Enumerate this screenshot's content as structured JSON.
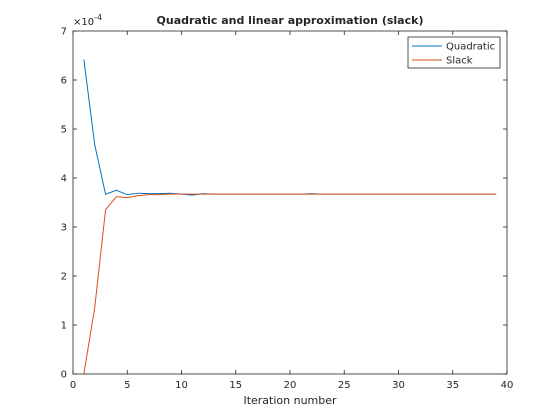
{
  "chart_data": {
    "type": "line",
    "title": "Quadratic and linear approximation (slack)",
    "xlabel": "Iteration number",
    "ylabel": "",
    "y_exponent_label": "×10",
    "y_exponent": "-4",
    "xlim": [
      0,
      40
    ],
    "ylim": [
      0,
      7
    ],
    "x_ticks": [
      0,
      5,
      10,
      15,
      20,
      25,
      30,
      35,
      40
    ],
    "y_ticks": [
      0,
      1,
      2,
      3,
      4,
      5,
      6,
      7
    ],
    "grid": false,
    "legend_position": "top-right",
    "x": [
      1,
      2,
      3,
      4,
      5,
      6,
      7,
      8,
      9,
      10,
      11,
      12,
      13,
      14,
      15,
      16,
      17,
      18,
      19,
      20,
      21,
      22,
      23,
      24,
      25,
      26,
      27,
      28,
      29,
      30,
      31,
      32,
      33,
      34,
      35,
      36,
      37,
      38,
      39
    ],
    "series": [
      {
        "name": "Quadratic",
        "color": "#0072BD",
        "values": [
          6.42,
          4.68,
          3.67,
          3.75,
          3.66,
          3.69,
          3.68,
          3.68,
          3.69,
          3.67,
          3.65,
          3.68,
          3.67,
          3.67,
          3.67,
          3.67,
          3.67,
          3.67,
          3.67,
          3.67,
          3.67,
          3.68,
          3.67,
          3.67,
          3.67,
          3.67,
          3.67,
          3.67,
          3.67,
          3.67,
          3.67,
          3.67,
          3.67,
          3.67,
          3.67,
          3.67,
          3.67,
          3.67,
          3.67
        ]
      },
      {
        "name": "Slack",
        "color": "#D95319",
        "values": [
          0.0,
          1.35,
          3.35,
          3.62,
          3.6,
          3.64,
          3.66,
          3.66,
          3.67,
          3.67,
          3.67,
          3.67,
          3.67,
          3.67,
          3.67,
          3.67,
          3.67,
          3.67,
          3.67,
          3.67,
          3.67,
          3.67,
          3.67,
          3.67,
          3.67,
          3.67,
          3.67,
          3.67,
          3.67,
          3.67,
          3.67,
          3.67,
          3.67,
          3.67,
          3.67,
          3.67,
          3.67,
          3.67,
          3.67
        ]
      }
    ]
  }
}
